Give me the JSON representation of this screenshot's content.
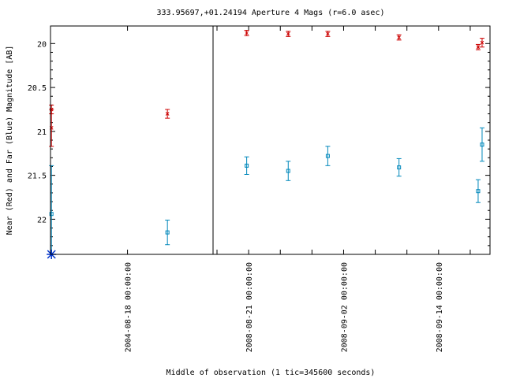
{
  "chart_data": {
    "type": "scatter",
    "title": "333.95697,+01.24194   Aperture 4 Mags (r=6.0 asec)",
    "xlabel": "Middle of observation (1 tic=345600 seconds)",
    "ylabel": "Near (Red) and Far (Blue) Magnitude [AB]",
    "ylim": [
      22.4,
      19.8
    ],
    "y_ticks": [
      "20",
      "20.5",
      "21",
      "21.5",
      "22"
    ],
    "x_tick_labels": [
      "2004-08-18 00:00:00",
      "2008-08-21 00:00:00",
      "2008-09-02 00:00:00",
      "2008-09-14 00:00:00"
    ],
    "panels": [
      {
        "x_range": [
          "2004-08-15 18:00:00",
          "2004-08-20 12:00:00"
        ],
        "series": [
          {
            "color": "#cc0000",
            "marker": "x",
            "points": [
              {
                "x": "2004-08-15 18:40:00",
                "y": 20.75,
                "err": 0.05
              },
              {
                "x": "2004-08-15 18:40:00",
                "y": 20.96,
                "err": 0.21
              },
              {
                "x": "2004-08-19 04:00:00",
                "y": 20.8,
                "err": 0.05
              }
            ]
          },
          {
            "color": "#0088bb",
            "marker": "square",
            "points": [
              {
                "x": "2004-08-15 18:40:00",
                "y": 21.94,
                "err": 0.55
              },
              {
                "x": "2004-08-19 04:00:00",
                "y": 22.15,
                "err": 0.14
              }
            ]
          },
          {
            "color": "#0033cc",
            "marker": "asterisk",
            "points": [
              {
                "x": "2004-08-15 18:40:00",
                "y": 22.4
              }
            ]
          }
        ]
      },
      {
        "x_range": [
          "2008-08-16 12:00:00",
          "2008-09-20 12:00:00"
        ],
        "series": [
          {
            "color": "#cc0000",
            "marker": "x",
            "points": [
              {
                "x": "2008-08-20 18:00:00",
                "y": 19.88,
                "err": 0.03
              },
              {
                "x": "2008-08-26 00:00:00",
                "y": 19.89,
                "err": 0.03
              },
              {
                "x": "2008-08-31 00:00:00",
                "y": 19.89,
                "err": 0.03
              },
              {
                "x": "2008-09-09 00:00:00",
                "y": 19.93,
                "err": 0.03
              },
              {
                "x": "2008-09-19 00:00:00",
                "y": 20.04,
                "err": 0.03
              },
              {
                "x": "2008-09-19 12:00:00",
                "y": 19.99,
                "err": 0.05
              }
            ]
          },
          {
            "color": "#0088bb",
            "marker": "square",
            "points": [
              {
                "x": "2008-08-20 18:00:00",
                "y": 21.39,
                "err": 0.1
              },
              {
                "x": "2008-08-26 00:00:00",
                "y": 21.45,
                "err": 0.11
              },
              {
                "x": "2008-08-31 00:00:00",
                "y": 21.28,
                "err": 0.11
              },
              {
                "x": "2008-09-09 00:00:00",
                "y": 21.41,
                "err": 0.1
              },
              {
                "x": "2008-09-19 00:00:00",
                "y": 21.68,
                "err": 0.13
              },
              {
                "x": "2008-09-19 12:00:00",
                "y": 21.15,
                "err": 0.19
              }
            ]
          }
        ]
      }
    ]
  }
}
